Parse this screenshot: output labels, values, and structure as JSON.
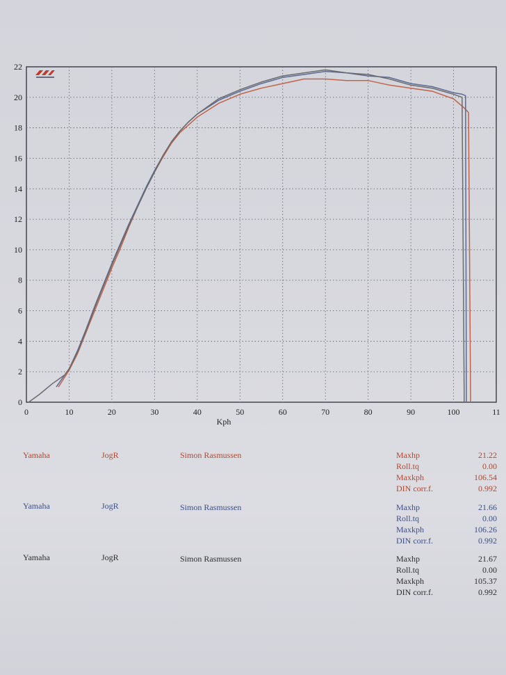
{
  "chart_data": {
    "type": "line",
    "xlabel": "Kph",
    "ylabel": "",
    "xlim": [
      0,
      110
    ],
    "ylim": [
      0,
      22
    ],
    "xticks": [
      "0",
      "10",
      "20",
      "30",
      "40",
      "50",
      "60",
      "70",
      "80",
      "90",
      "100",
      "11"
    ],
    "yticks": [
      "0",
      "2",
      "4",
      "6",
      "8",
      "10",
      "12",
      "14",
      "16",
      "18",
      "20",
      "22"
    ],
    "grid": true,
    "series": [
      {
        "color": "#c0634a",
        "x": [
          7.5,
          10,
          12,
          14,
          16,
          18,
          20,
          22,
          24,
          26,
          28,
          30,
          32,
          34,
          36,
          38,
          40,
          45,
          50,
          55,
          60,
          65,
          70,
          75,
          80,
          85,
          90,
          95,
          100,
          102.5,
          103.5,
          104
        ],
        "y": [
          1.0,
          2.1,
          3.2,
          4.6,
          6.0,
          7.4,
          8.8,
          10.1,
          11.5,
          12.8,
          14.0,
          15.1,
          16.1,
          17.0,
          17.7,
          18.2,
          18.7,
          19.6,
          20.2,
          20.6,
          20.9,
          21.2,
          21.2,
          21.1,
          21.1,
          20.8,
          20.6,
          20.4,
          19.9,
          19.3,
          19.0,
          0.0
        ]
      },
      {
        "color": "#5a6a94",
        "x": [
          7,
          10,
          12,
          14,
          16,
          18,
          20,
          22,
          24,
          26,
          28,
          30,
          32,
          34,
          36,
          38,
          40,
          45,
          50,
          55,
          60,
          65,
          70,
          75,
          80,
          85,
          90,
          95,
          100,
          102,
          102.8,
          103
        ],
        "y": [
          1.0,
          2.2,
          3.4,
          4.8,
          6.3,
          7.7,
          9.1,
          10.4,
          11.7,
          12.9,
          14.1,
          15.2,
          16.2,
          17.1,
          17.8,
          18.4,
          18.9,
          19.8,
          20.4,
          20.9,
          21.3,
          21.5,
          21.7,
          21.6,
          21.4,
          21.3,
          20.9,
          20.7,
          20.3,
          20.2,
          20.1,
          0.0
        ]
      },
      {
        "color": "#6b6b6b",
        "x": [
          0.5,
          3,
          6,
          9,
          10,
          12,
          14,
          16,
          18,
          20,
          22,
          24,
          26,
          28,
          30,
          32,
          34,
          36,
          38,
          40,
          45,
          50,
          55,
          60,
          65,
          70,
          75,
          80,
          85,
          90,
          95,
          100,
          102,
          102.5
        ],
        "y": [
          0.0,
          0.5,
          1.2,
          1.8,
          2.2,
          3.3,
          4.7,
          6.2,
          7.6,
          9.0,
          10.3,
          11.6,
          12.8,
          14.0,
          15.1,
          16.2,
          17.1,
          17.8,
          18.4,
          18.9,
          19.9,
          20.5,
          21.0,
          21.4,
          21.6,
          21.8,
          21.6,
          21.5,
          21.2,
          20.8,
          20.6,
          20.2,
          20.0,
          0.0
        ]
      }
    ]
  },
  "runs": [
    {
      "color": "#b8452a",
      "make": "Yamaha",
      "model": "JogR",
      "rider": "Simon Rasmussen",
      "stats": [
        {
          "label": "Maxhp",
          "value": "21.22"
        },
        {
          "label": "Roll.tq",
          "value": "0.00"
        },
        {
          "label": "Maxkph",
          "value": "106.54"
        },
        {
          "label": "DIN corr.f.",
          "value": "0.992"
        }
      ]
    },
    {
      "color": "#3e4e86",
      "make": "Yamaha",
      "model": "JogR",
      "rider": "Simon Rasmussen",
      "stats": [
        {
          "label": "Maxhp",
          "value": "21.66"
        },
        {
          "label": "Roll.tq",
          "value": "0.00"
        },
        {
          "label": "Maxkph",
          "value": "106.26"
        },
        {
          "label": "DIN corr.f.",
          "value": "0.992"
        }
      ]
    },
    {
      "color": "#2e2e2e",
      "make": "Yamaha",
      "model": "JogR",
      "rider": "Simon Rasmussen",
      "stats": [
        {
          "label": "Maxhp",
          "value": "21.67"
        },
        {
          "label": "Roll.tq",
          "value": "0.00"
        },
        {
          "label": "Maxkph",
          "value": "105.37"
        },
        {
          "label": "DIN corr.f.",
          "value": "0.992"
        }
      ]
    }
  ]
}
